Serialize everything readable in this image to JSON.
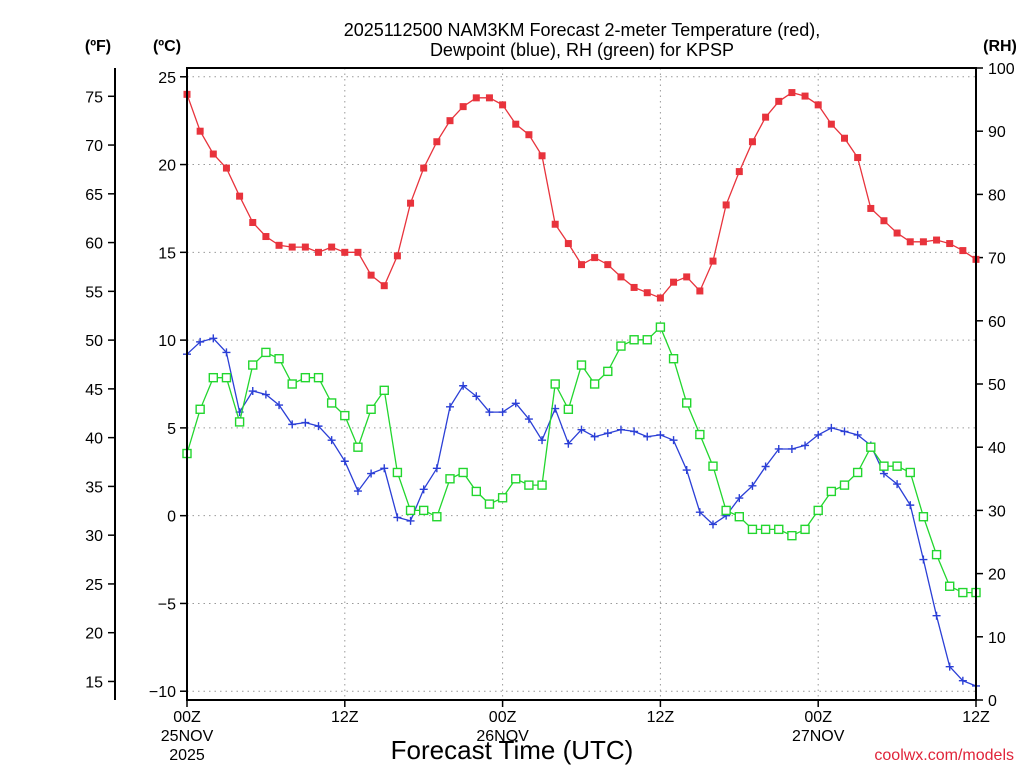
{
  "chart_data": {
    "type": "line",
    "title_line1": "2025112500 NAM3KM Forecast 2-meter Temperature (red),",
    "title_line2": "Dewpoint (blue), RH (green) for KPSP",
    "xlabel": "Forecast Time (UTC)",
    "credit": "coolwx.com/models",
    "units": {
      "fahrenheit": "(ºF)",
      "celsius": "(ºC)",
      "rh": "(RH)"
    },
    "x_hours": [
      0,
      1,
      2,
      3,
      4,
      5,
      6,
      7,
      8,
      9,
      10,
      11,
      12,
      13,
      14,
      15,
      16,
      17,
      18,
      19,
      20,
      21,
      22,
      23,
      24,
      25,
      26,
      27,
      28,
      29,
      30,
      31,
      32,
      33,
      34,
      35,
      36,
      37,
      38,
      39,
      40,
      41,
      42,
      43,
      44,
      45,
      46,
      47,
      48,
      49,
      50,
      51,
      52,
      53,
      54,
      55,
      56,
      57,
      58,
      59,
      60
    ],
    "xlim": [
      0,
      60
    ],
    "ylim_c": [
      -10.5,
      25.5
    ],
    "ylim_rh": [
      0,
      100
    ],
    "x_ticks": [
      {
        "hour": 0,
        "label": "00Z",
        "date": "25NOV",
        "year": "2025"
      },
      {
        "hour": 12,
        "label": "12Z",
        "date": "",
        "year": ""
      },
      {
        "hour": 24,
        "label": "00Z",
        "date": "26NOV",
        "year": ""
      },
      {
        "hour": 36,
        "label": "12Z",
        "date": "",
        "year": ""
      },
      {
        "hour": 48,
        "label": "00Z",
        "date": "27NOV",
        "year": ""
      },
      {
        "hour": 60,
        "label": "12Z",
        "date": "",
        "year": ""
      }
    ],
    "celsius_ticks": [
      25,
      20,
      15,
      10,
      5,
      0,
      -5,
      -10
    ],
    "celsius_tick_labels": [
      "25",
      "20",
      "15",
      "10",
      "5",
      "0",
      "−5",
      "−10"
    ],
    "fahrenheit_ticks": [
      75,
      70,
      65,
      60,
      55,
      50,
      45,
      40,
      35,
      30,
      25,
      20,
      15
    ],
    "fahrenheit_tick_labels": [
      "75",
      "70",
      "65",
      "60",
      "55",
      "50",
      "45",
      "40",
      "35",
      "30",
      "25",
      "20",
      "15"
    ],
    "rh_ticks": [
      100,
      90,
      80,
      70,
      60,
      50,
      40,
      30,
      20,
      10,
      0
    ],
    "rh_tick_labels": [
      "100",
      "90",
      "80",
      "70",
      "60",
      "50",
      "40",
      "30",
      "20",
      "10",
      "0"
    ],
    "series": [
      {
        "name": "Temperature (°C)",
        "color": "#e8333c",
        "marker": "filled-square",
        "axis": "celsius",
        "values": [
          24.0,
          21.9,
          20.6,
          19.8,
          18.2,
          16.7,
          15.9,
          15.4,
          15.3,
          15.3,
          15.0,
          15.3,
          15.0,
          15.0,
          13.7,
          13.1,
          14.8,
          17.8,
          19.8,
          21.3,
          22.5,
          23.3,
          23.8,
          23.8,
          23.4,
          22.3,
          21.7,
          20.5,
          16.6,
          15.5,
          14.3,
          14.7,
          14.3,
          13.6,
          13.0,
          12.7,
          12.4,
          13.3,
          13.6,
          12.8,
          14.5,
          17.7,
          19.6,
          21.3,
          22.7,
          23.6,
          24.1,
          23.9,
          23.4,
          22.3,
          21.5,
          20.4,
          17.5,
          16.8,
          16.1,
          15.6,
          15.6,
          15.7,
          15.5,
          15.1,
          14.6
        ]
      },
      {
        "name": "Dewpoint (°C)",
        "color": "#2b3fd6",
        "marker": "plus",
        "axis": "celsius",
        "values": [
          9.2,
          9.9,
          10.1,
          9.3,
          5.9,
          7.1,
          6.9,
          6.3,
          5.2,
          5.3,
          5.1,
          4.3,
          3.1,
          1.4,
          2.4,
          2.7,
          -0.1,
          -0.3,
          1.5,
          2.7,
          6.2,
          7.4,
          6.8,
          5.9,
          5.9,
          6.4,
          5.5,
          4.3,
          6.1,
          4.1,
          4.9,
          4.5,
          4.7,
          4.9,
          4.8,
          4.5,
          4.6,
          4.3,
          2.6,
          0.2,
          -0.5,
          0.0,
          1.0,
          1.7,
          2.8,
          3.8,
          3.8,
          4.0,
          4.6,
          5.0,
          4.8,
          4.6,
          4.0,
          2.4,
          1.8,
          0.6,
          -2.5,
          -5.7,
          -8.6,
          -9.4,
          -9.7
        ]
      },
      {
        "name": "RH (%)",
        "color": "#22d62e",
        "marker": "open-square",
        "axis": "rh",
        "values": [
          39,
          46,
          51,
          51,
          44,
          53,
          55,
          54,
          50,
          51,
          51,
          47,
          45,
          40,
          46,
          49,
          36,
          30,
          30,
          29,
          35,
          36,
          33,
          31,
          32,
          35,
          34,
          34,
          50,
          46,
          53,
          50,
          52,
          56,
          57,
          57,
          59,
          54,
          47,
          42,
          37,
          30,
          29,
          27,
          27,
          27,
          26,
          27,
          30,
          33,
          34,
          36,
          40,
          37,
          37,
          36,
          29,
          23,
          18,
          17,
          17
        ]
      }
    ]
  }
}
